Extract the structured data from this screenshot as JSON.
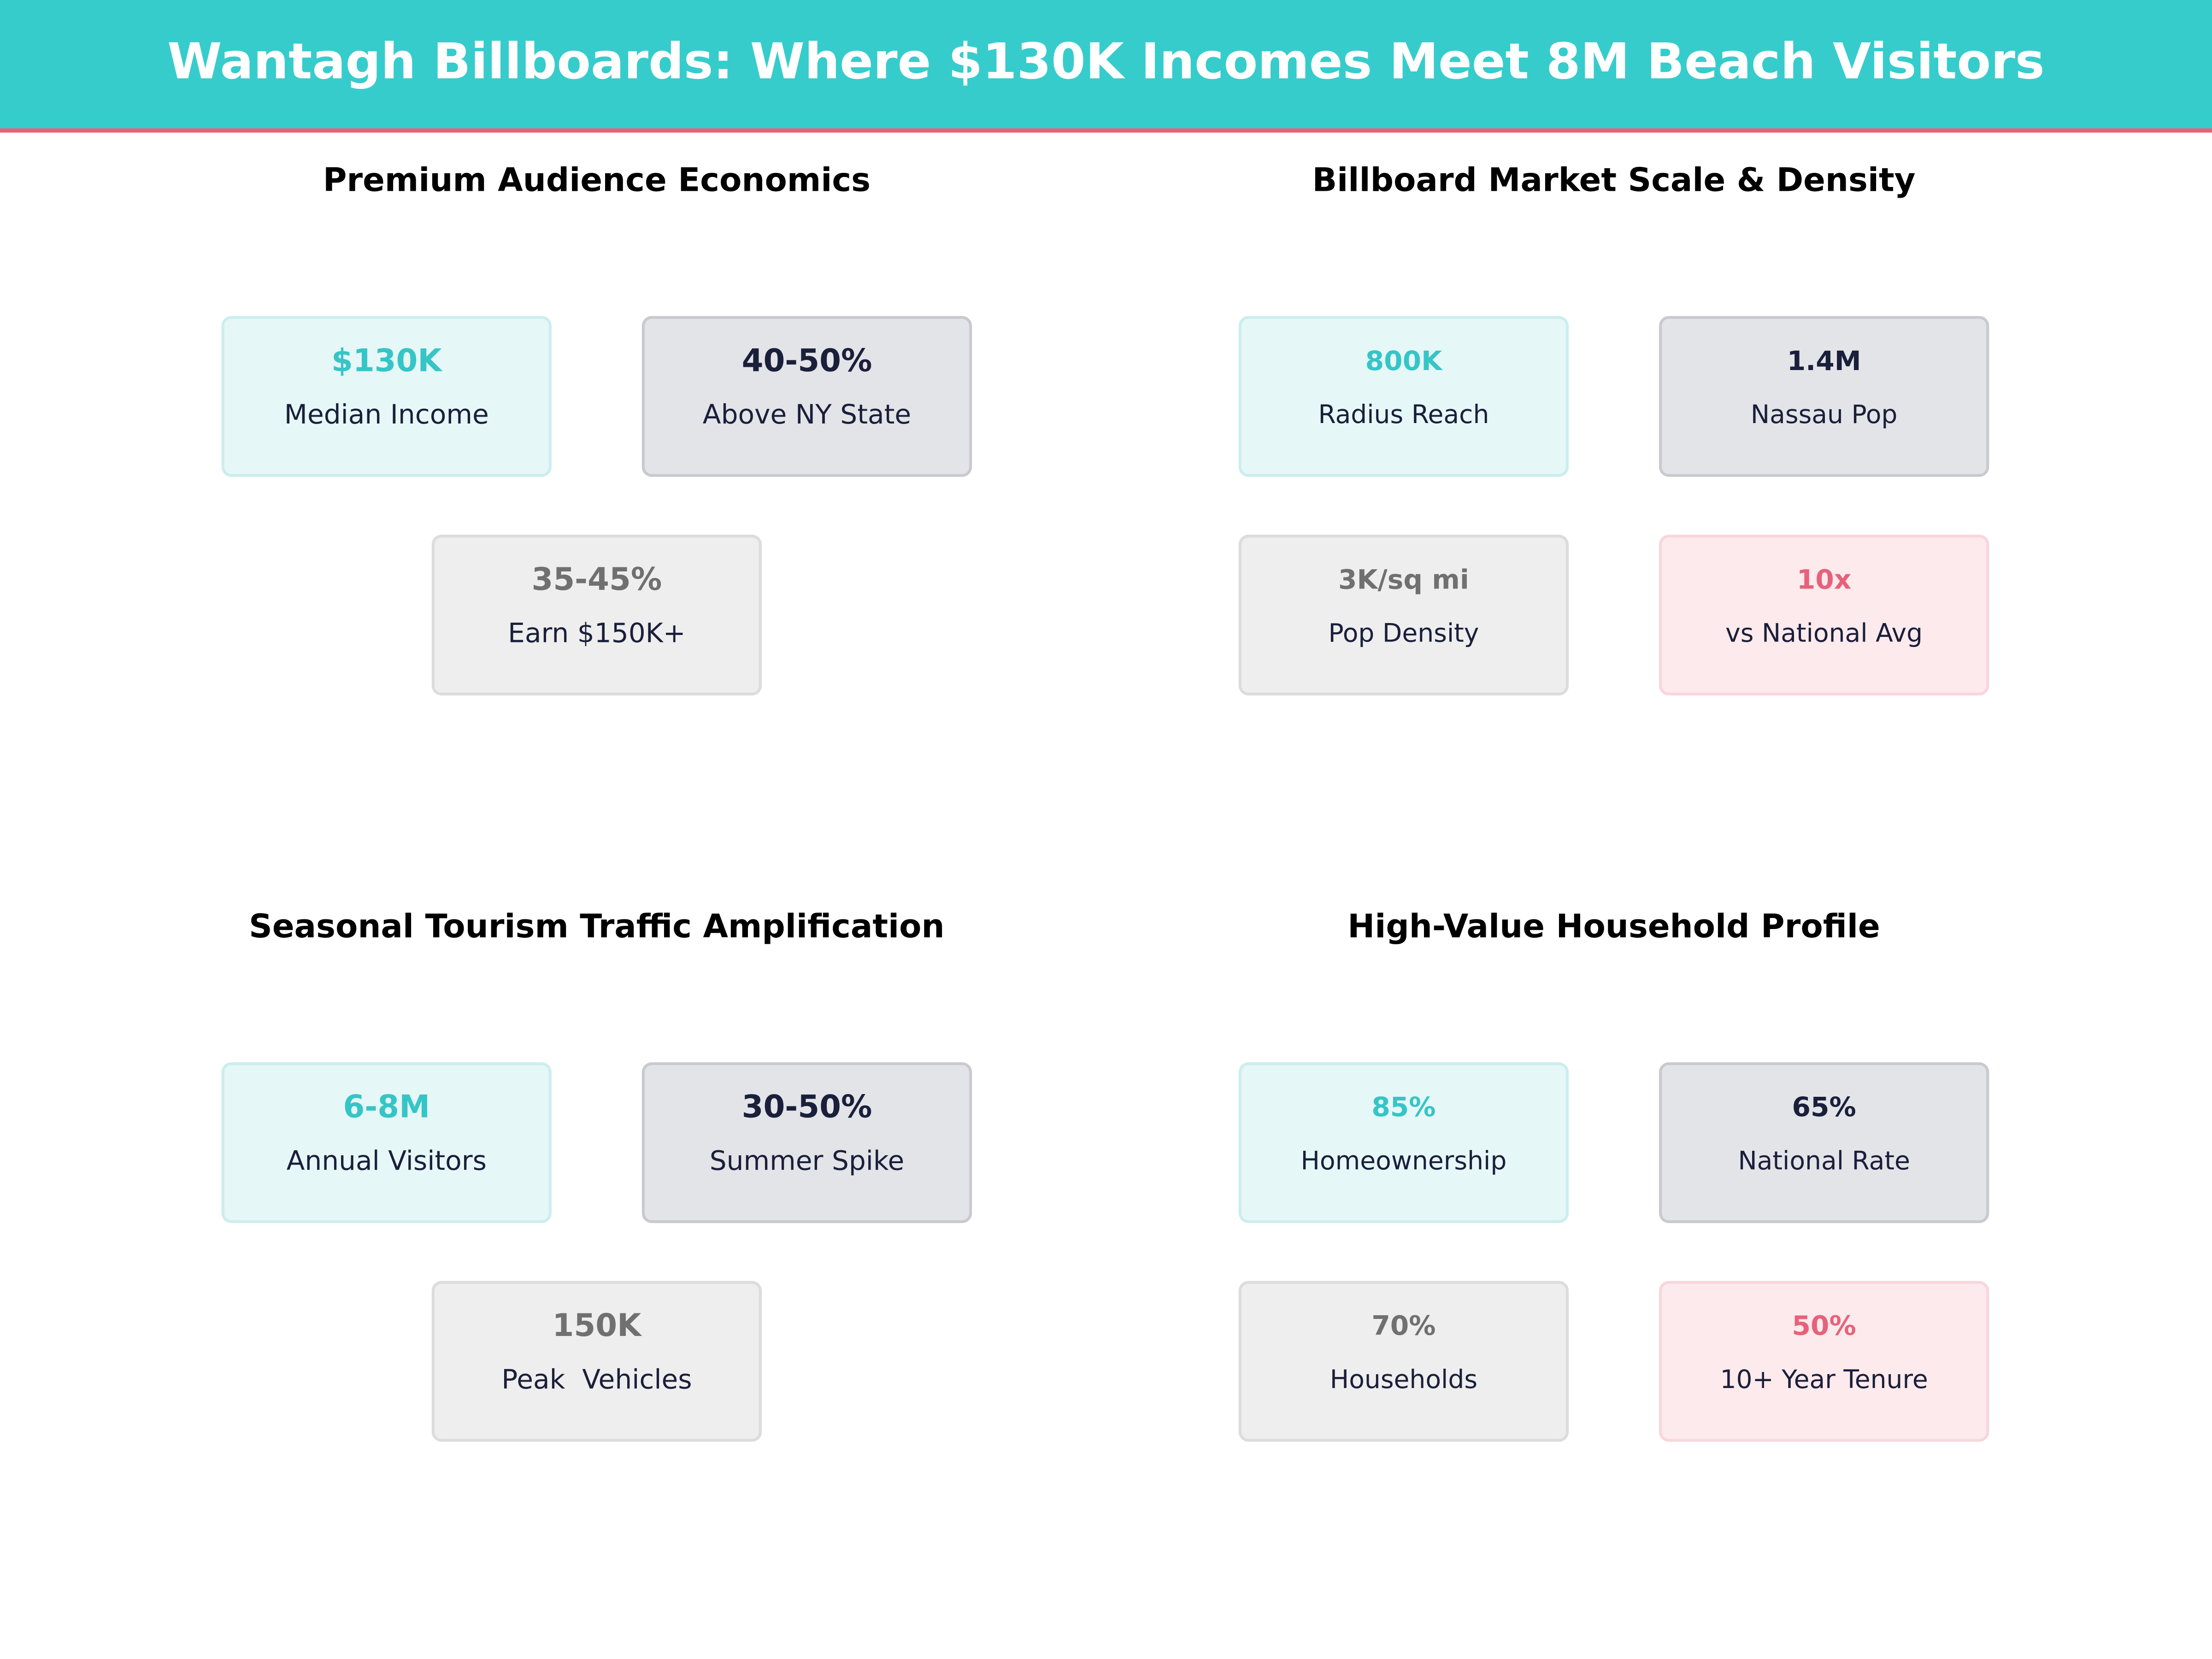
{
  "header": {
    "title": "Wantagh Billboards: Where $130K Incomes Meet 8M Beach Visitors"
  },
  "panels": [
    {
      "title": "Premium Audience Economics",
      "cards": [
        {
          "value": "$130K",
          "label": "Median Income"
        },
        {
          "value": "40-50%",
          "label": "Above NY State"
        },
        {
          "value": "35-45%",
          "label": "Earn $150K+"
        }
      ]
    },
    {
      "title": "Billboard Market Scale & Density",
      "cards": [
        {
          "value": "800K",
          "label": "Radius Reach"
        },
        {
          "value": "1.4M",
          "label": "Nassau Pop"
        },
        {
          "value": "3K/sq mi",
          "label": "Pop Density"
        },
        {
          "value": "10x",
          "label": "vs National Avg"
        }
      ]
    },
    {
      "title": "Seasonal Tourism Traffic Amplification",
      "cards": [
        {
          "value": "6-8M",
          "label": "Annual Visitors"
        },
        {
          "value": "30-50%",
          "label": "Summer Spike"
        },
        {
          "value": "150K",
          "label": "Peak  Vehicles"
        }
      ]
    },
    {
      "title": "High-Value Household Profile",
      "cards": [
        {
          "value": "85%",
          "label": "Homeownership"
        },
        {
          "value": "65%",
          "label": "National Rate"
        },
        {
          "value": "70%",
          "label": "Households"
        },
        {
          "value": "50%",
          "label": "10+ Year Tenure"
        }
      ]
    }
  ]
}
